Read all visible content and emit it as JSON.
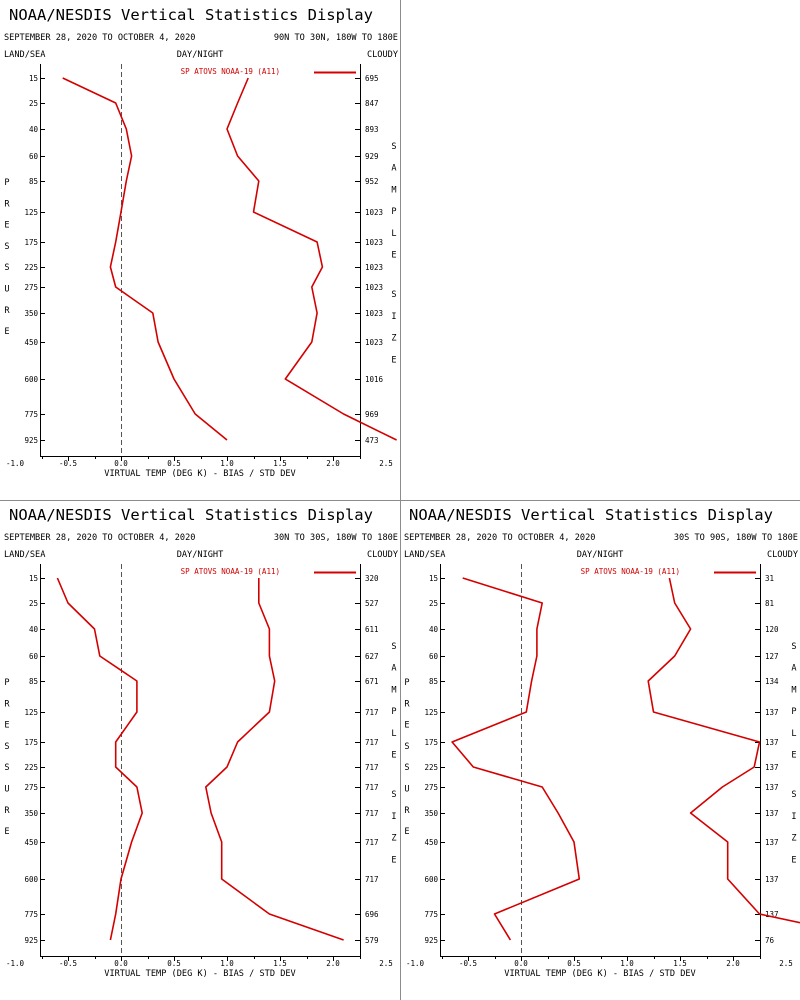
{
  "colors": {
    "series": "#d40000",
    "axis": "#000000",
    "divider": "#8c8c8c",
    "zero_line": "#555555"
  },
  "chart_data": [
    {
      "type": "line",
      "title": "NOAA/NESDIS Vertical Statistics Display",
      "date_range": "SEPTEMBER 28, 2020 TO OCTOBER 4, 2020",
      "region": "90N TO 30N, 180W TO 180E",
      "top_left_label": "LAND/SEA",
      "top_center_label": "DAY/NIGHT",
      "top_right_label": "CLOUDY",
      "ylabel": "PRESSURE",
      "y2label": "SAMPLE SIZE",
      "xlabel": "VIRTUAL TEMP (DEG K) - BIAS / STD DEV",
      "legend": "SP ATOVS NOAA-19 (A11)",
      "xlim": [
        -1.5,
        4.5
      ],
      "x_ticks": [
        "-1.0",
        "-0.5",
        "0.0",
        "0.5",
        "1.0",
        "1.5",
        "2.0",
        "2.5",
        "3.0",
        "3.5",
        "4.0"
      ],
      "pressure_levels": [
        "15",
        "25",
        "40",
        "60",
        "85",
        "125",
        "175",
        "225",
        "275",
        "350",
        "450",
        "600",
        "775",
        "925"
      ],
      "sample_size": [
        "695",
        "847",
        "893",
        "929",
        "952",
        "1023",
        "1023",
        "1023",
        "1023",
        "1023",
        "1023",
        "1016",
        "969",
        "473"
      ],
      "series": [
        {
          "name": "BIAS",
          "values": [
            -0.55,
            -0.05,
            0.05,
            0.1,
            0.05,
            0.0,
            -0.05,
            -0.1,
            -0.05,
            0.3,
            0.35,
            0.5,
            0.7,
            1.0
          ]
        },
        {
          "name": "STD DEV",
          "values": [
            1.2,
            1.1,
            1.0,
            1.1,
            1.3,
            1.25,
            1.85,
            1.9,
            1.8,
            1.85,
            1.8,
            1.55,
            2.1,
            2.6
          ]
        }
      ]
    },
    {
      "type": "line",
      "title": "NOAA/NESDIS Vertical Statistics Display",
      "date_range": "SEPTEMBER 28, 2020 TO OCTOBER 4, 2020",
      "region": "30N TO 30S, 180W TO 180E",
      "top_left_label": "LAND/SEA",
      "top_center_label": "DAY/NIGHT",
      "top_right_label": "CLOUDY",
      "ylabel": "PRESSURE",
      "y2label": "SAMPLE SIZE",
      "xlabel": "VIRTUAL TEMP (DEG K) - BIAS / STD DEV",
      "legend": "SP ATOVS NOAA-19 (A11)",
      "xlim": [
        -1.5,
        4.5
      ],
      "x_ticks": [
        "-1.0",
        "-0.5",
        "0.0",
        "0.5",
        "1.0",
        "1.5",
        "2.0",
        "2.5",
        "3.0",
        "3.5",
        "4.0"
      ],
      "pressure_levels": [
        "15",
        "25",
        "40",
        "60",
        "85",
        "125",
        "175",
        "225",
        "275",
        "350",
        "450",
        "600",
        "775",
        "925"
      ],
      "sample_size": [
        "320",
        "527",
        "611",
        "627",
        "671",
        "717",
        "717",
        "717",
        "717",
        "717",
        "717",
        "717",
        "696",
        "579"
      ],
      "series": [
        {
          "name": "BIAS",
          "values": [
            -0.6,
            -0.5,
            -0.25,
            -0.2,
            0.15,
            0.15,
            -0.05,
            -0.05,
            0.15,
            0.2,
            0.1,
            0.0,
            -0.05,
            -0.1
          ]
        },
        {
          "name": "STD DEV",
          "values": [
            1.3,
            1.3,
            1.4,
            1.4,
            1.45,
            1.4,
            1.1,
            1.0,
            0.8,
            0.85,
            0.95,
            0.95,
            1.4,
            2.1
          ]
        }
      ]
    },
    {
      "type": "line",
      "title": "NOAA/NESDIS Vertical Statistics Display",
      "date_range": "SEPTEMBER 28, 2020 TO OCTOBER 4, 2020",
      "region": "30S TO 90S, 180W TO 180E",
      "top_left_label": "LAND/SEA",
      "top_center_label": "DAY/NIGHT",
      "top_right_label": "CLOUDY",
      "ylabel": "PRESSURE",
      "y2label": "SAMPLE SIZE",
      "xlabel": "VIRTUAL TEMP (DEG K) - BIAS / STD DEV",
      "legend": "SP ATOVS NOAA-19 (A11)",
      "xlim": [
        -1.5,
        4.5
      ],
      "x_ticks": [
        "-1.0",
        "-0.5",
        "0.0",
        "0.5",
        "1.0",
        "1.5",
        "2.0",
        "2.5",
        "3.0",
        "3.5",
        "4.0"
      ],
      "pressure_levels": [
        "15",
        "25",
        "40",
        "60",
        "85",
        "125",
        "175",
        "225",
        "275",
        "350",
        "450",
        "600",
        "775",
        "925"
      ],
      "sample_size": [
        "31",
        "81",
        "120",
        "127",
        "134",
        "137",
        "137",
        "137",
        "137",
        "137",
        "137",
        "137",
        "137",
        "76"
      ],
      "series": [
        {
          "name": "BIAS",
          "values": [
            -0.55,
            0.2,
            0.15,
            0.15,
            0.1,
            0.05,
            -0.65,
            -0.45,
            0.2,
            0.35,
            0.5,
            0.55,
            -0.25,
            -0.1
          ]
        },
        {
          "name": "STD DEV",
          "values": [
            1.4,
            1.45,
            1.6,
            1.45,
            1.2,
            1.25,
            2.25,
            2.2,
            1.9,
            1.6,
            1.95,
            1.95,
            2.25,
            3.4
          ]
        }
      ]
    }
  ]
}
